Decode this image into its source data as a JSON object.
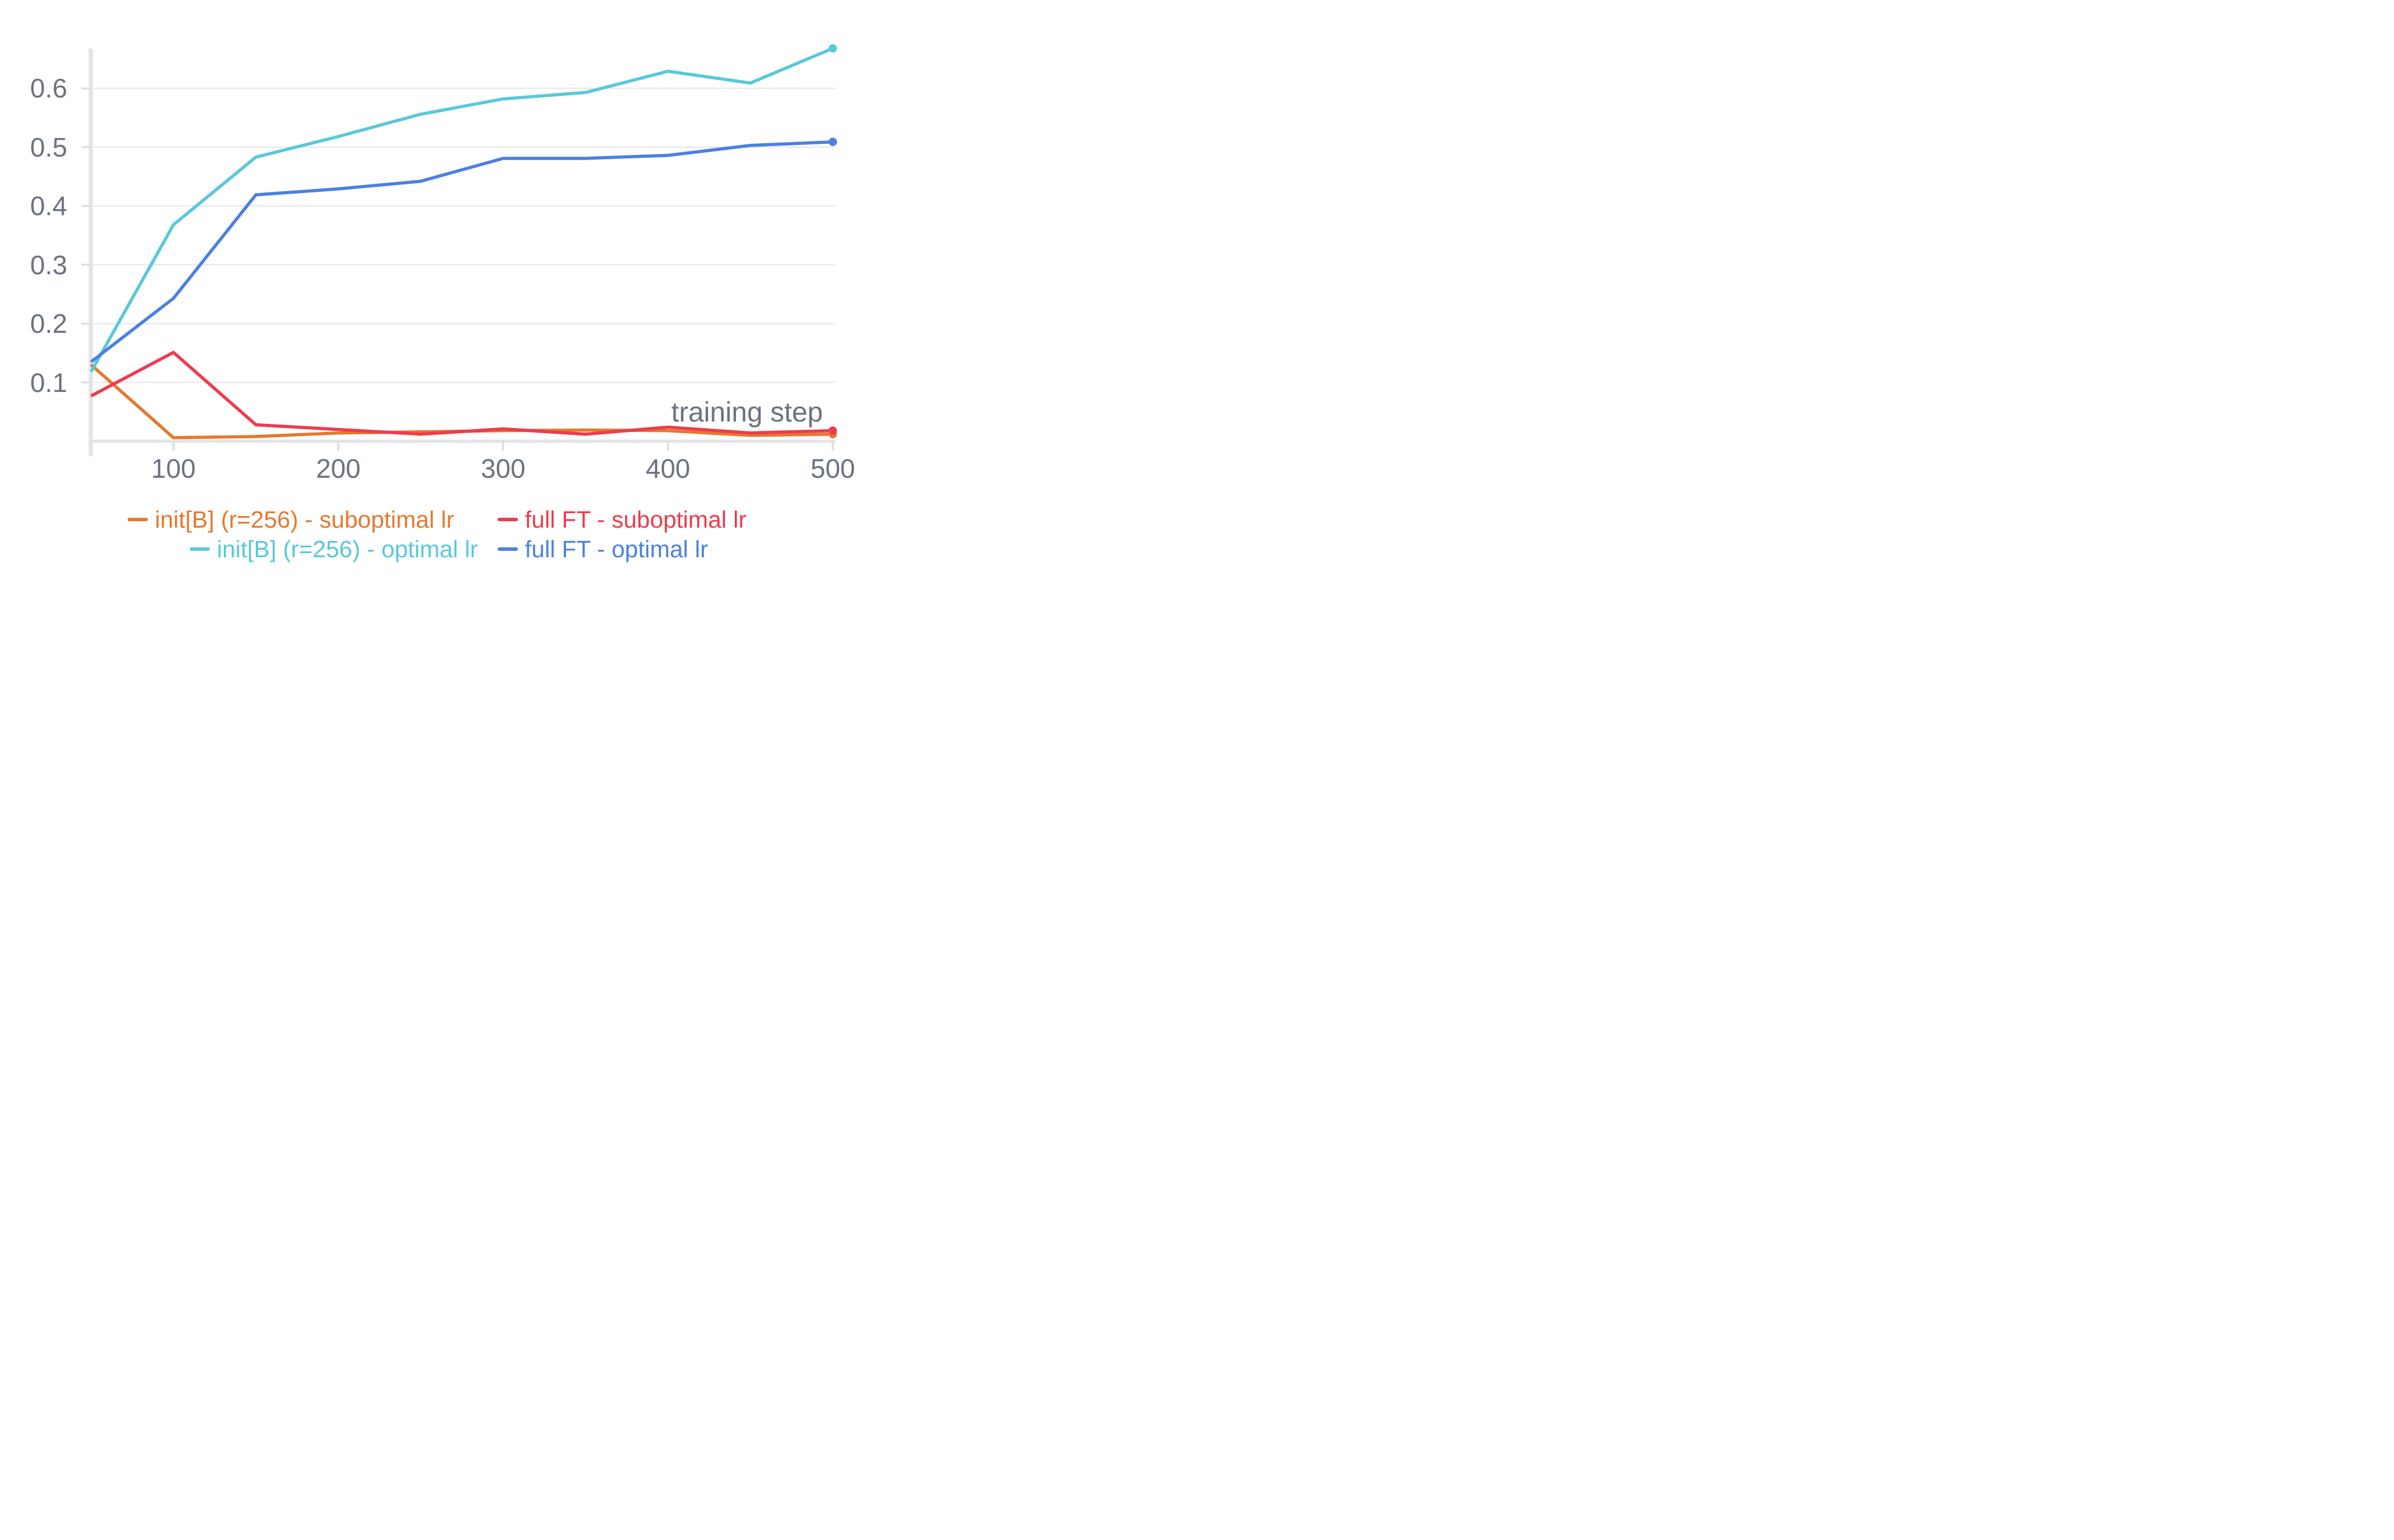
{
  "chart_data": {
    "type": "line",
    "x": [
      50,
      100,
      150,
      200,
      250,
      300,
      350,
      400,
      450,
      500
    ],
    "series": [
      {
        "name": "init[B] (r=256) - suboptimal lr",
        "color": "#E5792F",
        "values": [
          0.13,
          0.006,
          0.008,
          0.014,
          0.016,
          0.018,
          0.019,
          0.018,
          0.01,
          0.012
        ]
      },
      {
        "name": "full FT - suboptimal lr",
        "color": "#EE3B4E",
        "values": [
          0.077,
          0.151,
          0.028,
          0.02,
          0.012,
          0.021,
          0.012,
          0.024,
          0.014,
          0.018
        ]
      },
      {
        "name": "init[B] (r=256) - optimal lr",
        "color": "#5AC8DA",
        "values": [
          0.118,
          0.368,
          0.483,
          0.518,
          0.556,
          0.582,
          0.593,
          0.629,
          0.609,
          0.668
        ]
      },
      {
        "name": "full FT - optimal lr",
        "color": "#4C80E1",
        "values": [
          0.135,
          0.243,
          0.419,
          0.429,
          0.442,
          0.481,
          0.481,
          0.486,
          0.503,
          0.509
        ]
      }
    ],
    "title": "",
    "xlabel": "training step",
    "ylabel": "",
    "x_ticks": {
      "values": [
        100,
        200,
        300,
        400,
        500
      ],
      "labels": [
        "100",
        "200",
        "300",
        "400",
        "500"
      ]
    },
    "y_ticks": {
      "values": [
        0.1,
        0.2,
        0.3,
        0.4,
        0.5,
        0.6
      ],
      "labels": [
        "0.1",
        "0.2",
        "0.3",
        "0.4",
        "0.5",
        "0.6"
      ]
    },
    "xlim": [
      50,
      515
    ],
    "ylim": [
      0,
      0.667
    ],
    "grid": true,
    "legend_position": "bottom",
    "end_markers": true,
    "colors": {
      "tick_text": "#6B7280",
      "axis_title_text": "#6B7280",
      "gridline": "#EAEAED",
      "axis_bar": "#E4E4E8",
      "tick_mark": "#DDDDE2",
      "background": "#FFFFFF"
    }
  }
}
